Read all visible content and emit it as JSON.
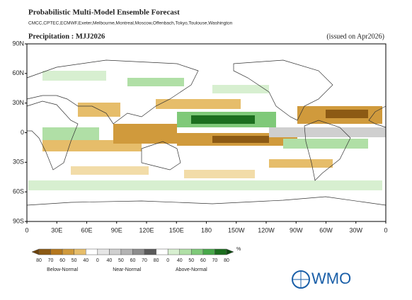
{
  "header": {
    "title": "Probabilistic Multi-Model Ensemble Forecast",
    "subtitle": "CMCC,CPTEC,ECMWF,Exeter,Melbourne,Montreal,Moscow,Offenbach,Tokyo,Toulouse,Washington"
  },
  "map": {
    "title": "Precipitation : MJJ2026",
    "issued": "(issued on Apr2026)",
    "lat_labels": [
      "90N",
      "60N",
      "30N",
      "0",
      "30S",
      "60S",
      "90S"
    ],
    "lon_labels": [
      "0",
      "30E",
      "60E",
      "90E",
      "120E",
      "150E",
      "180",
      "150W",
      "120W",
      "90W",
      "60W",
      "30W",
      "0"
    ]
  },
  "legend": {
    "labels": [
      "80",
      "70",
      "60",
      "50",
      "40",
      "0",
      "40",
      "50",
      "60",
      "70",
      "80",
      "0",
      "40",
      "50",
      "60",
      "70",
      "80"
    ],
    "unit": "%",
    "categories": [
      "Below-Normal",
      "Near-Normal",
      "Above-Normal"
    ]
  },
  "logo": {
    "text": "WMO"
  }
}
